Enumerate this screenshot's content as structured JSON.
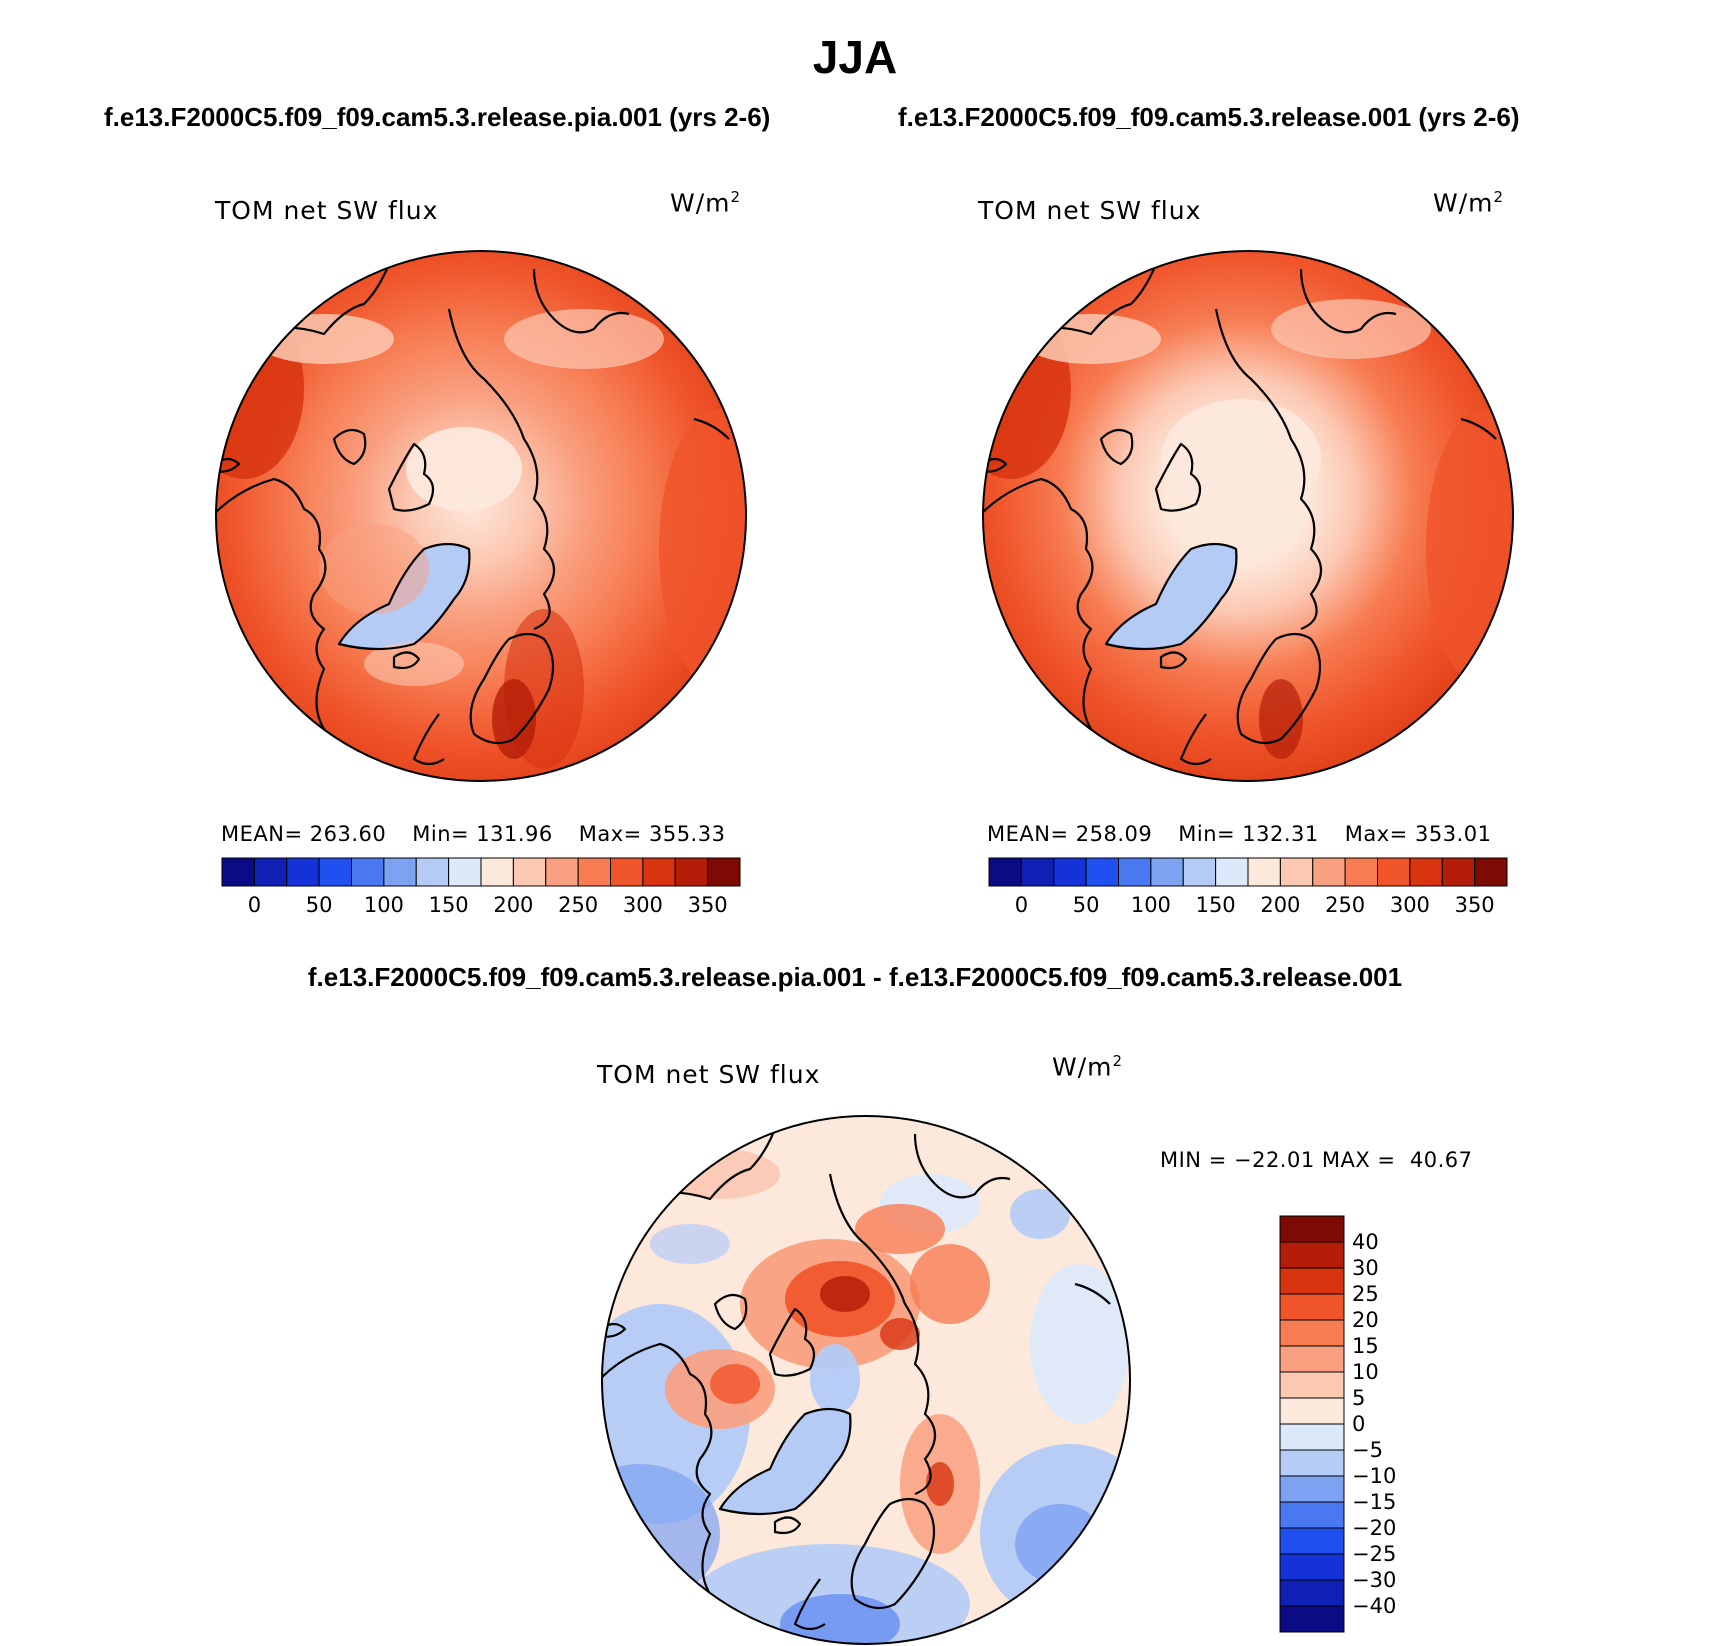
{
  "title": "JJA",
  "panels": [
    {
      "case": "f.e13.F2000C5.f09_f09.cam5.3.release.pia.001 (yrs 2-6)",
      "variable": "TOM net SW flux",
      "units_base": "W/m",
      "units_exp": "2",
      "mean_label": "MEAN=",
      "mean": "263.60",
      "min_label": "Min=",
      "min": "131.96",
      "max_label": "Max=",
      "max": "355.33",
      "colorbar_ticks": [
        "0",
        "50",
        "100",
        "150",
        "200",
        "250",
        "300",
        "350"
      ]
    },
    {
      "case": "f.e13.F2000C5.f09_f09.cam5.3.release.001 (yrs 2-6)",
      "variable": "TOM net SW flux",
      "units_base": "W/m",
      "units_exp": "2",
      "mean_label": "MEAN=",
      "mean": "258.09",
      "min_label": "Min=",
      "min": "132.31",
      "max_label": "Max=",
      "max": "353.01",
      "colorbar_ticks": [
        "0",
        "50",
        "100",
        "150",
        "200",
        "250",
        "300",
        "350"
      ]
    }
  ],
  "difference": {
    "title": "f.e13.F2000C5.f09_f09.cam5.3.release.pia.001 - f.e13.F2000C5.f09_f09.cam5.3.release.001",
    "variable": "TOM net SW flux",
    "units_base": "W/m",
    "units_exp": "2",
    "min_label": "MIN =",
    "min": "−22.01",
    "max_label": "MAX =",
    "max": "40.67",
    "colorbar_ticks": [
      "40",
      "30",
      "25",
      "20",
      "15",
      "10",
      "5",
      "0",
      "−5",
      "−10",
      "−15",
      "−20",
      "−25",
      "−30",
      "−40"
    ]
  },
  "colors": {
    "abs_scale": [
      "#0b0b86",
      "#1020b4",
      "#1432d8",
      "#2050f0",
      "#4a78f0",
      "#7ea2f2",
      "#b4cbf6",
      "#dce9fa",
      "#fde8dc",
      "#fcc8b2",
      "#f9a080",
      "#f77c52",
      "#f0542a",
      "#d83410",
      "#b41e08",
      "#7e0a04"
    ],
    "diff_scale": [
      "#7e0a04",
      "#b41e08",
      "#d83410",
      "#f0542a",
      "#f77c52",
      "#f9a080",
      "#fcc8b2",
      "#fde8dc",
      "#dce9fa",
      "#b4cbf6",
      "#7ea2f2",
      "#4a78f0",
      "#2050f0",
      "#1432d8",
      "#1020b4",
      "#0b0b86"
    ]
  }
}
